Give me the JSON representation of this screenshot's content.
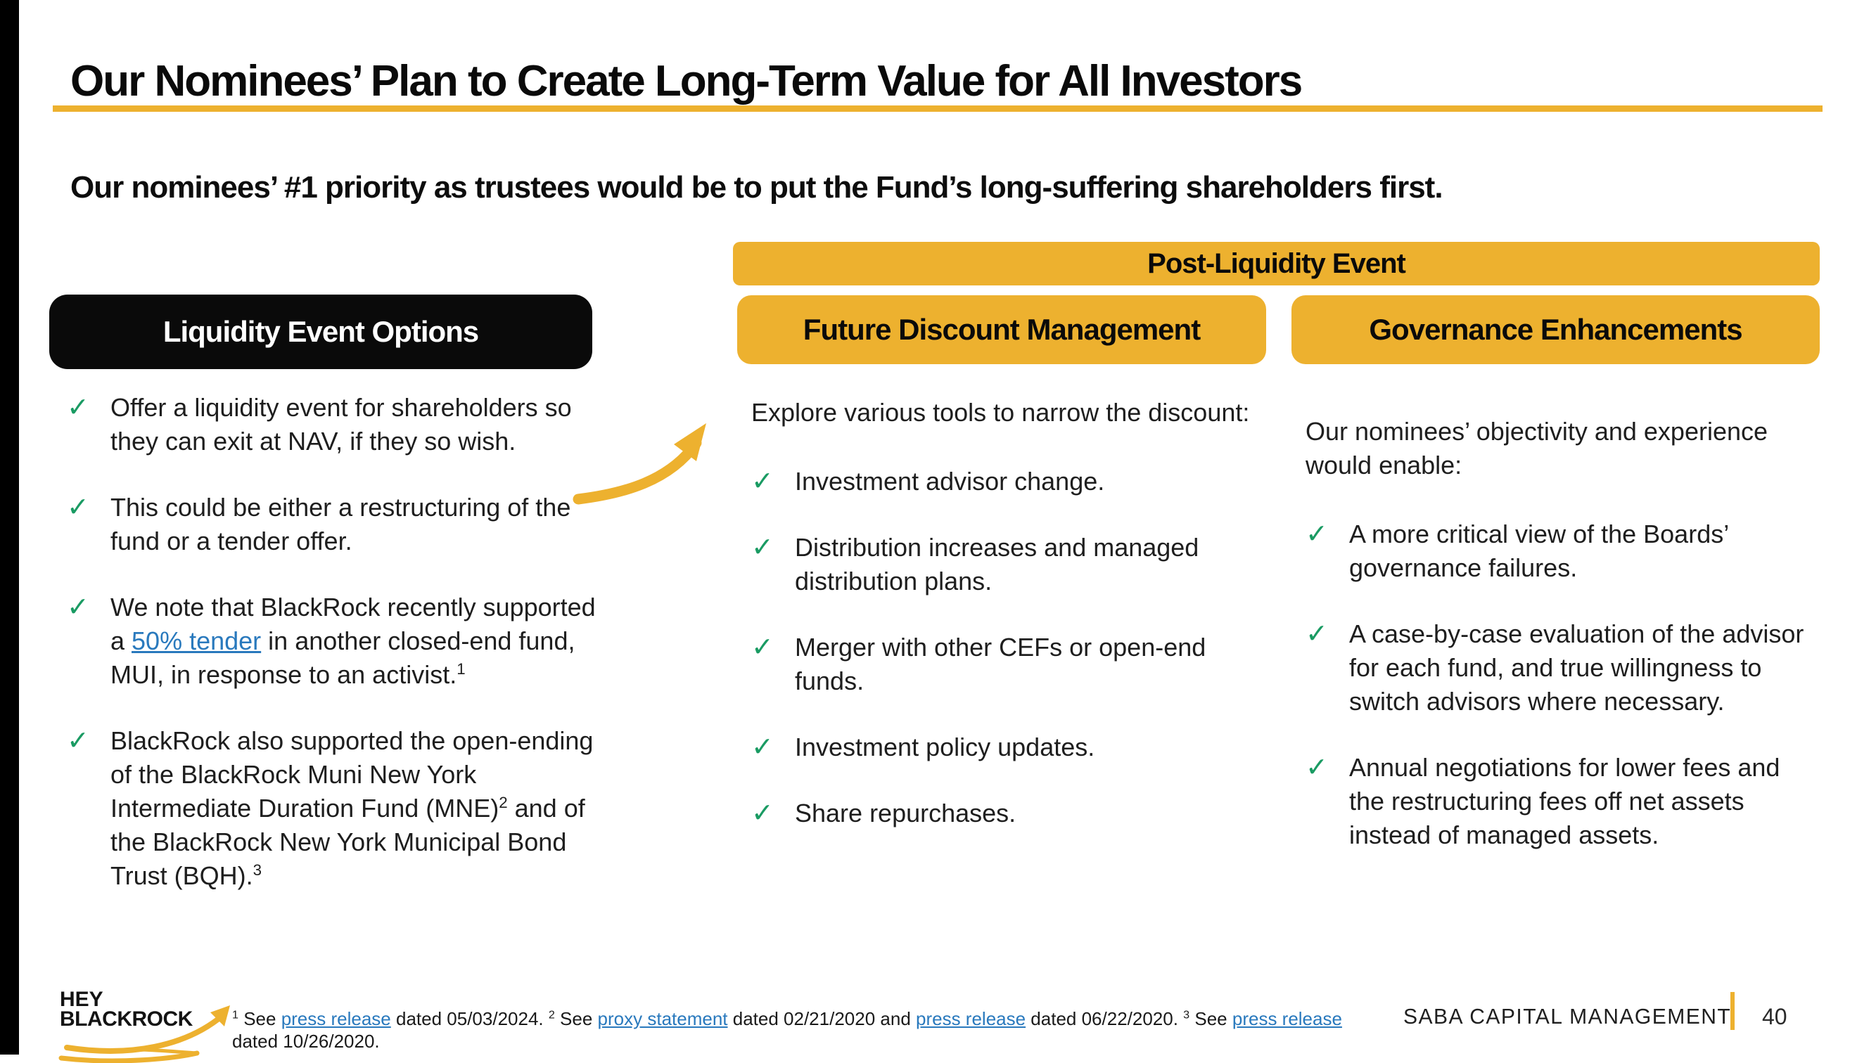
{
  "colors": {
    "accent_yellow": "#EDB12F",
    "check_green": "#1A9B63",
    "link_blue": "#2979BD",
    "ink": "#0A0A0A"
  },
  "icons": {
    "check": "✓",
    "curved_arrow": "curved-up-right-arrow",
    "logo_arrow": "swoosh-up-right-arrow"
  },
  "header": {
    "title": "Our Nominees’ Plan to Create Long-Term Value for All Investors",
    "subtitle": "Our nominees’ #1 priority as trustees would be to put the Fund’s long-suffering shareholders first."
  },
  "liquidity": {
    "header": "Liquidity Event Options",
    "bullets": [
      {
        "parts": [
          {
            "text": "Offer a liquidity event for shareholders so they can exit at NAV, if they so wish."
          }
        ]
      },
      {
        "parts": [
          {
            "text": "This could be either a restructuring of the fund or a tender offer."
          }
        ]
      },
      {
        "parts": [
          {
            "text": "We note that BlackRock recently supported a "
          },
          {
            "text": "50% tender",
            "style": "link"
          },
          {
            "text": " in another closed-end fund, MUI, in response to an activist."
          },
          {
            "text": "1",
            "style": "sup"
          }
        ]
      },
      {
        "parts": [
          {
            "text": "BlackRock also supported the open-ending of the BlackRock Muni New York Intermediate Duration Fund (MNE)"
          },
          {
            "text": "2",
            "style": "sup"
          },
          {
            "text": " and of the BlackRock New York Municipal Bond Trust (BQH)."
          },
          {
            "text": "3",
            "style": "sup"
          }
        ]
      }
    ]
  },
  "post_liquidity": {
    "banner": "Post-Liquidity Event"
  },
  "future_discount": {
    "header": "Future Discount Management",
    "intro": "Explore various tools to narrow the discount:",
    "bullets": [
      "Investment advisor change.",
      "Distribution increases and managed distribution plans.",
      "Merger with other CEFs or open-end funds.",
      "Investment policy updates.",
      "Share repurchases."
    ]
  },
  "governance": {
    "header": "Governance Enhancements",
    "intro": "Our nominees’ objectivity and experience would enable:",
    "bullets": [
      "A more critical view of the Boards’ governance failures.",
      "A case-by-case evaluation of the advisor for each fund, and true willingness to switch advisors where necessary.",
      "Annual negotiations for lower fees and the restructuring fees off net assets instead of managed assets."
    ]
  },
  "footer": {
    "logo_line1": "HEY",
    "logo_line2": "BLACKROCK",
    "footnote_parts": [
      {
        "text": "1",
        "style": "sup"
      },
      {
        "text": " See "
      },
      {
        "text": "press release",
        "style": "link"
      },
      {
        "text": " dated 05/03/2024. "
      },
      {
        "text": "2",
        "style": "sup"
      },
      {
        "text": " See "
      },
      {
        "text": "proxy statement",
        "style": "link"
      },
      {
        "text": " dated 02/21/2020 and "
      },
      {
        "text": "press release",
        "style": "link"
      },
      {
        "text": " dated 06/22/2020. "
      },
      {
        "text": "3",
        "style": "sup"
      },
      {
        "text": " See "
      },
      {
        "text": "press release",
        "style": "link"
      },
      {
        "text": " dated 10/26/2020."
      }
    ],
    "brand": "SABA CAPITAL MANAGEMENT",
    "page_number": "40"
  }
}
